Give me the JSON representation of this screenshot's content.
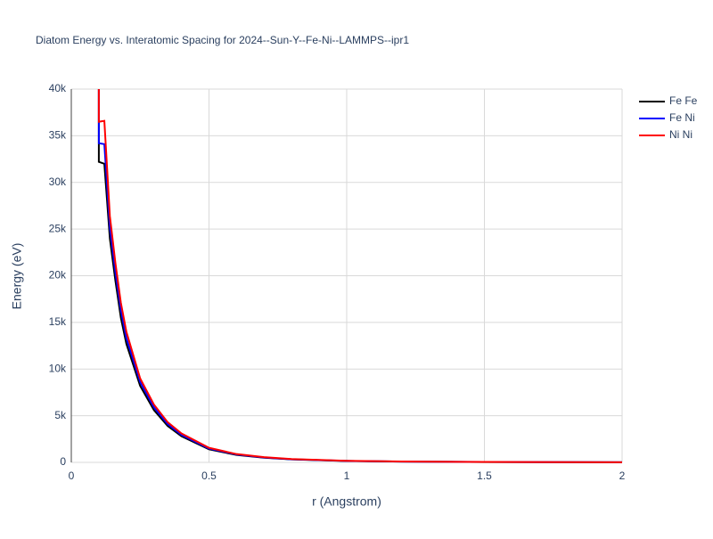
{
  "chart_data": {
    "type": "line",
    "title": "Diatom Energy vs. Interatomic Spacing for 2024--Sun-Y--Fe-Ni--LAMMPS--ipr1",
    "x_label": "r (Angstrom)",
    "y_label": "Energy (eV)",
    "x": [
      0.1,
      0.1,
      0.12,
      0.14,
      0.16,
      0.18,
      0.2,
      0.25,
      0.3,
      0.35,
      0.4,
      0.5,
      0.6,
      0.7,
      0.8,
      1.0,
      1.2,
      1.5,
      2.0
    ],
    "series": [
      {
        "name": "Fe Fe",
        "color": "#000000",
        "values": [
          40000,
          32200,
          32000,
          24000,
          19500,
          15500,
          12700,
          8200,
          5600,
          3900,
          2800,
          1400,
          800,
          500,
          320,
          150,
          80,
          40,
          10
        ]
      },
      {
        "name": "Fe Ni",
        "color": "#0000ff",
        "values": [
          40000,
          34200,
          34100,
          25200,
          20400,
          16300,
          13300,
          8600,
          5900,
          4100,
          2950,
          1480,
          850,
          530,
          340,
          160,
          85,
          42,
          11
        ]
      },
      {
        "name": "Ni Ni",
        "color": "#ff0000",
        "values": [
          40000,
          36500,
          36600,
          26400,
          21400,
          17100,
          14000,
          9000,
          6200,
          4300,
          3100,
          1560,
          890,
          560,
          360,
          170,
          90,
          45,
          12
        ]
      }
    ],
    "xlim": [
      0,
      2
    ],
    "xticks": [
      0,
      0.5,
      1,
      1.5,
      2
    ],
    "ylim": [
      0,
      40000
    ],
    "yticks": [
      0,
      {
        "value": 5000,
        "label": "5k"
      },
      {
        "value": 10000,
        "label": "10k"
      },
      {
        "value": 15000,
        "label": "15k"
      },
      {
        "value": 20000,
        "label": "20k"
      },
      {
        "value": 25000,
        "label": "25k"
      },
      {
        "value": 30000,
        "label": "30k"
      },
      {
        "value": 35000,
        "label": "35k"
      },
      {
        "value": 40000,
        "label": "40k"
      }
    ],
    "grid": true,
    "legend": "top-right"
  }
}
